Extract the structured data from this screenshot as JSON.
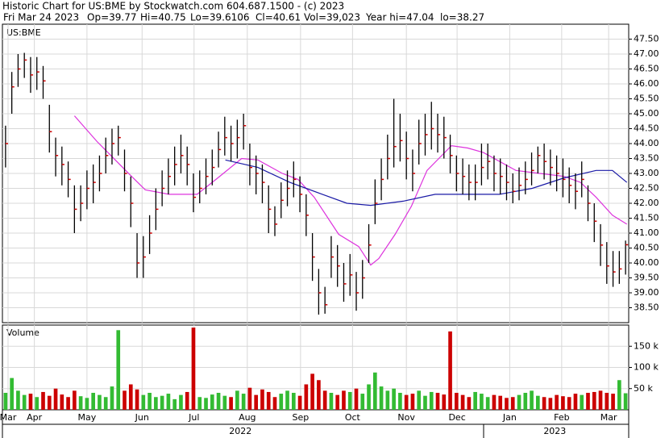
{
  "header": {
    "title": "Historic Chart for US:BME by Stockwatch.com 604.687.1500 - (c) 2023",
    "fields": [
      "Fri Mar 24 2023",
      "Op=39.77",
      "Hi=40.75",
      "Lo=39.6106",
      "Cl=40.61",
      "Vol=39,023",
      "Year hi=47.04",
      "lo=38.27"
    ]
  },
  "chart_data": [
    {
      "type": "ohlc",
      "label": "US:BME",
      "xlim": [
        0,
        100
      ],
      "ylim": [
        38,
        48
      ],
      "yticks": [
        {
          "value": 38.5,
          "label": "38.50"
        },
        {
          "value": 39,
          "label": "39.00"
        },
        {
          "value": 39.5,
          "label": "39.50"
        },
        {
          "value": 40,
          "label": "40.00"
        },
        {
          "value": 40.5,
          "label": "40.50"
        },
        {
          "value": 41,
          "label": "41.00"
        },
        {
          "value": 41.5,
          "label": "41.50"
        },
        {
          "value": 42,
          "label": "42.00"
        },
        {
          "value": 42.5,
          "label": "42.50"
        },
        {
          "value": 43,
          "label": "43.00"
        },
        {
          "value": 43.5,
          "label": "43.50"
        },
        {
          "value": 44,
          "label": "44.00"
        },
        {
          "value": 44.5,
          "label": "44.50"
        },
        {
          "value": 45,
          "label": "45.00"
        },
        {
          "value": 45.5,
          "label": "45.50"
        },
        {
          "value": 46,
          "label": "46.00"
        },
        {
          "value": 46.5,
          "label": "46.50"
        },
        {
          "value": 47,
          "label": "47.00"
        },
        {
          "value": 47.5,
          "label": "47.50"
        }
      ],
      "xticks": [
        {
          "value": 0.9,
          "label": "Mar"
        },
        {
          "value": 5.1,
          "label": "Apr"
        },
        {
          "value": 13.5,
          "label": "May"
        },
        {
          "value": 22.3,
          "label": "Jun"
        },
        {
          "value": 30.6,
          "label": "Jul"
        },
        {
          "value": 39.1,
          "label": "Aug"
        },
        {
          "value": 47.6,
          "label": "Sep"
        },
        {
          "value": 55.9,
          "label": "Oct"
        },
        {
          "value": 64.5,
          "label": "Nov"
        },
        {
          "value": 72.6,
          "label": "Dec"
        },
        {
          "value": 81.0,
          "label": "Jan"
        },
        {
          "value": 89.3,
          "label": "Feb"
        },
        {
          "value": 96.8,
          "label": "Mar"
        }
      ],
      "years": [
        {
          "value": 38.0,
          "label": "2022"
        },
        {
          "value": 88.2,
          "label": "2023"
        }
      ],
      "grid": true,
      "bar_color": "#000000",
      "close_color": "#cc0000",
      "high": [
        44.6,
        46.4,
        47.0,
        47.04,
        46.9,
        46.9,
        46.6,
        45.3,
        44.2,
        43.9,
        43.4,
        42.6,
        42.6,
        43.1,
        43.3,
        43.6,
        44.2,
        44.5,
        44.6,
        43.8,
        42.9,
        41.0,
        40.9,
        41.6,
        42.5,
        43.1,
        43.5,
        43.9,
        44.3,
        43.9,
        43.0,
        43.1,
        43.5,
        43.8,
        44.4,
        44.9,
        44.6,
        44.8,
        45.0,
        44.0,
        43.6,
        43.3,
        42.6,
        41.9,
        42.7,
        43.1,
        43.4,
        42.9,
        42.3,
        41.0,
        39.8,
        39.2,
        40.9,
        40.6,
        40.0,
        40.3,
        39.7,
        40.1,
        41.3,
        42.8,
        43.5,
        44.3,
        45.5,
        45.0,
        44.4,
        43.8,
        44.8,
        45.0,
        45.4,
        45.0,
        44.9,
        44.3,
        43.6,
        43.5,
        43.3,
        43.3,
        44.0,
        44.0,
        43.6,
        43.5,
        43.3,
        43.0,
        43.2,
        43.4,
        43.7,
        43.9,
        44.0,
        43.8,
        43.6,
        43.5,
        43.2,
        43.0,
        43.4,
        42.6,
        42.0,
        41.3,
        40.7,
        40.4,
        40.4,
        40.75
      ],
      "low": [
        43.2,
        45.0,
        45.9,
        46.2,
        45.7,
        45.8,
        45.5,
        43.7,
        42.9,
        42.6,
        42.2,
        41.0,
        41.4,
        41.8,
        42.0,
        42.4,
        43.0,
        43.3,
        43.6,
        42.4,
        41.2,
        39.5,
        39.5,
        40.3,
        41.1,
        41.9,
        42.3,
        42.6,
        43.0,
        42.6,
        41.7,
        42.0,
        42.3,
        42.6,
        43.2,
        43.6,
        43.4,
        43.5,
        43.8,
        42.6,
        42.3,
        42.0,
        41.0,
        40.9,
        41.5,
        41.9,
        42.2,
        41.7,
        40.9,
        39.4,
        38.27,
        38.3,
        39.5,
        39.2,
        38.7,
        38.9,
        38.4,
        38.8,
        40.0,
        41.3,
        42.1,
        42.8,
        43.2,
        43.4,
        42.8,
        42.4,
        43.3,
        43.6,
        43.8,
        43.7,
        43.5,
        43.0,
        42.4,
        42.3,
        42.1,
        42.1,
        42.6,
        42.8,
        42.4,
        42.3,
        42.1,
        42.0,
        42.1,
        42.3,
        42.6,
        43.0,
        42.8,
        42.6,
        42.4,
        42.2,
        42.0,
        41.8,
        42.2,
        41.4,
        40.7,
        39.9,
        39.3,
        39.2,
        39.3,
        39.61
      ],
      "close": [
        44.0,
        45.9,
        46.5,
        46.8,
        46.3,
        46.4,
        46.1,
        44.4,
        43.6,
        43.3,
        42.8,
        41.8,
        42.0,
        42.5,
        42.7,
        43.0,
        43.6,
        44.0,
        44.2,
        43.0,
        42.0,
        40.0,
        40.2,
        41.0,
        41.8,
        42.5,
        42.9,
        43.3,
        43.6,
        43.3,
        42.2,
        42.5,
        42.9,
        43.2,
        43.8,
        44.2,
        44.0,
        44.2,
        44.6,
        43.2,
        43.0,
        42.7,
        41.8,
        41.3,
        42.1,
        42.5,
        42.8,
        42.3,
        41.6,
        40.2,
        39.0,
        38.6,
        40.2,
        39.9,
        39.3,
        39.6,
        39.0,
        39.5,
        40.6,
        42.0,
        42.8,
        43.5,
        43.9,
        44.1,
        43.5,
        43.0,
        44.0,
        44.3,
        44.5,
        44.3,
        44.2,
        43.6,
        43.0,
        42.9,
        42.7,
        42.7,
        43.2,
        43.4,
        43.0,
        42.9,
        42.7,
        42.4,
        42.6,
        42.8,
        43.1,
        43.6,
        43.4,
        43.2,
        43.0,
        42.8,
        42.6,
        42.4,
        42.8,
        42.0,
        41.4,
        40.6,
        39.9,
        39.7,
        39.8,
        40.61
      ],
      "series": [
        {
          "color": "#dd33dd",
          "x": [
            11.5,
            15.1,
            20.2,
            22.8,
            26.6,
            31.1,
            34.4,
            38.2,
            40.8,
            44.7,
            47.2,
            49.8,
            53.7,
            56.9,
            58.8,
            60.1,
            62.7,
            65.3,
            67.8,
            71.7,
            74.3,
            76.8,
            82.0,
            85.8,
            89.7,
            92.3,
            94.8,
            97.4,
            99.7
          ],
          "values": [
            44.93,
            44.07,
            42.99,
            42.45,
            42.3,
            42.3,
            42.85,
            43.5,
            43.45,
            43.0,
            42.8,
            42.2,
            40.96,
            40.55,
            39.93,
            40.15,
            40.96,
            41.9,
            43.1,
            43.93,
            43.85,
            43.7,
            43.1,
            43.0,
            42.9,
            42.7,
            42.2,
            41.6,
            41.3
          ]
        },
        {
          "color": "#1a1aa6",
          "x": [
            35.6,
            40.8,
            45.9,
            51.1,
            55.0,
            58.8,
            64.0,
            69.1,
            74.3,
            79.4,
            84.6,
            89.7,
            94.8,
            97.4,
            99.7
          ],
          "values": [
            43.45,
            43.2,
            42.7,
            42.3,
            42.0,
            41.93,
            42.07,
            42.3,
            42.3,
            42.3,
            42.5,
            42.85,
            43.1,
            43.1,
            42.7
          ]
        }
      ]
    },
    {
      "type": "volume",
      "label": "Volume",
      "xlim": [
        0,
        100
      ],
      "ylim": [
        0,
        200000
      ],
      "yticks": [
        {
          "value": 50000,
          "label": "50 k"
        },
        {
          "value": 100000,
          "label": "100 k"
        },
        {
          "value": 150000,
          "label": "150 k"
        }
      ],
      "up_color": "#33bb33",
      "down_color": "#cc0000",
      "values": [
        40000,
        75000,
        45000,
        35000,
        38000,
        30000,
        42000,
        33000,
        50000,
        36000,
        30000,
        45000,
        32000,
        28000,
        40000,
        35000,
        30000,
        55000,
        188000,
        45000,
        60000,
        48000,
        35000,
        40000,
        30000,
        33000,
        38000,
        25000,
        35000,
        42000,
        194000,
        30000,
        28000,
        36000,
        40000,
        33000,
        30000,
        45000,
        38000,
        52000,
        35000,
        48000,
        42000,
        30000,
        38000,
        45000,
        40000,
        33000,
        60000,
        85000,
        70000,
        45000,
        40000,
        35000,
        45000,
        42000,
        50000,
        38000,
        60000,
        88000,
        55000,
        45000,
        50000,
        40000,
        35000,
        38000,
        45000,
        33000,
        42000,
        40000,
        36000,
        185000,
        40000,
        35000,
        30000,
        42000,
        38000,
        30000,
        35000,
        33000,
        28000,
        30000,
        35000,
        40000,
        45000,
        33000,
        30000,
        28000,
        35000,
        32000,
        30000,
        38000,
        35000,
        40000,
        42000,
        45000,
        40000,
        38000,
        70000,
        39023
      ]
    }
  ]
}
